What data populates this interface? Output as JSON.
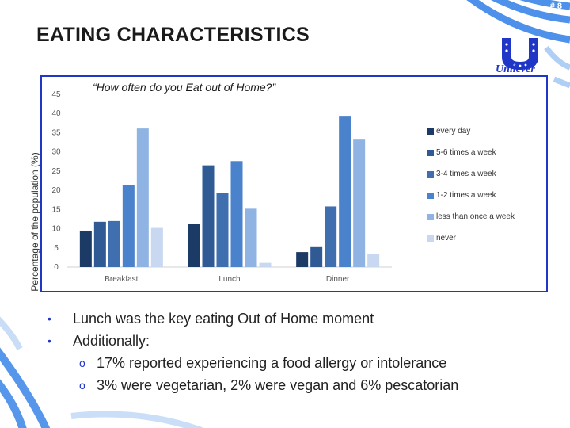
{
  "slide": {
    "number": "# 8",
    "title": "EATING CHARACTERISTICS",
    "logo_text": "Unilever"
  },
  "chart_data": {
    "type": "bar",
    "title": "“How often do you Eat out of Home?”",
    "xlabel": "",
    "ylabel": "Percentage of the population (%)",
    "ylim": [
      0,
      45
    ],
    "yticks": [
      0,
      5,
      10,
      15,
      20,
      25,
      30,
      35,
      40,
      45
    ],
    "grid": false,
    "legend_position": "right",
    "categories": [
      "Breakfast",
      "Lunch",
      "Dinner"
    ],
    "series": [
      {
        "name": "every day",
        "color": "#1c3a66",
        "values": [
          9.5,
          11.3,
          3.9
        ]
      },
      {
        "name": "5-6 times a week",
        "color": "#2f5a94",
        "values": [
          11.8,
          26.5,
          5.2
        ]
      },
      {
        "name": "3-4 times a week",
        "color": "#3f6fae",
        "values": [
          12.0,
          19.2,
          15.8
        ]
      },
      {
        "name": "1-2 times a week",
        "color": "#4a82cc",
        "values": [
          21.4,
          27.6,
          39.4
        ]
      },
      {
        "name": "less than once a week",
        "color": "#8fb3e3",
        "values": [
          36.1,
          15.2,
          33.2
        ]
      },
      {
        "name": "never",
        "color": "#c7d8f0",
        "values": [
          10.2,
          1.1,
          3.4
        ]
      }
    ]
  },
  "bullets": [
    {
      "text": "Lunch was the key eating Out of Home moment",
      "sub": []
    },
    {
      "text": "Additionally:",
      "sub": [
        "17% reported experiencing a food allergy or intolerance",
        "3% were vegetarian, 2% were vegan and 6% pescatorian"
      ]
    }
  ],
  "icons": {
    "bullet": "disc-bullet",
    "sub_bullet": "circle-bullet",
    "logo": "unilever-logo-icon"
  },
  "colors": {
    "accent": "#1f36c7",
    "deco": "#2e6fe0"
  }
}
